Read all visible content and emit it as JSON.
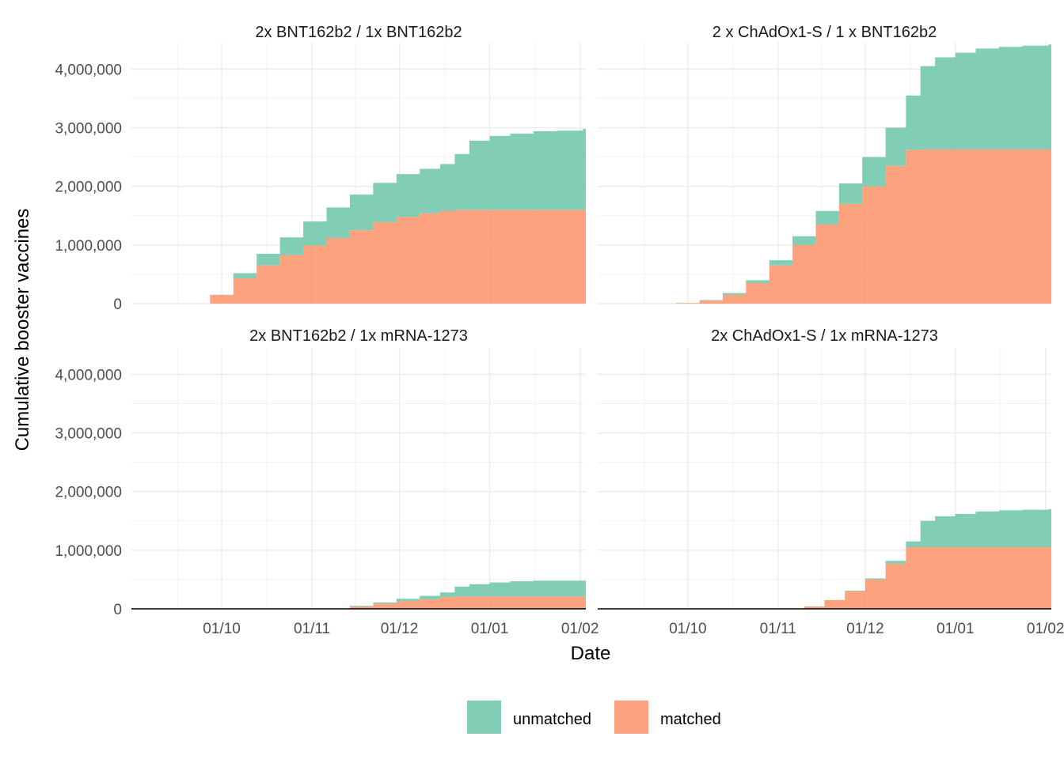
{
  "chart_data": {
    "type": "area",
    "stacked": true,
    "step": true,
    "xlabel": "Date",
    "ylabel": "Cumulative booster vaccines",
    "ylim": [
      0,
      4450000
    ],
    "y_ticks": [
      0,
      1000000,
      2000000,
      3000000,
      4000000
    ],
    "y_tick_labels": [
      "0",
      "1,000,000",
      "2,000,000",
      "3,000,000",
      "4,000,000"
    ],
    "x_range": [
      "2021-08-31",
      "2022-02-03"
    ],
    "x_ticks": [
      "2021-10-01",
      "2021-11-01",
      "2021-12-01",
      "2022-01-01",
      "2022-02-01"
    ],
    "x_tick_labels": [
      "01/10",
      "01/11",
      "01/12",
      "01/01",
      "01/02"
    ],
    "grid": true,
    "legend_position": "bottom",
    "legend": [
      {
        "key": "unmatched",
        "label": "unmatched",
        "color": "#66C2A5"
      },
      {
        "key": "matched",
        "label": "matched",
        "color": "#FC8D62"
      }
    ],
    "panels": [
      {
        "title": "2x BNT162b2  / 1x BNT162b2",
        "dates": [
          "2021-09-19",
          "2021-09-27",
          "2021-10-05",
          "2021-10-13",
          "2021-10-21",
          "2021-10-29",
          "2021-11-06",
          "2021-11-14",
          "2021-11-22",
          "2021-11-30",
          "2021-12-08",
          "2021-12-15",
          "2021-12-20",
          "2021-12-25",
          "2022-01-01",
          "2022-01-08",
          "2022-01-16",
          "2022-01-24",
          "2022-02-02"
        ],
        "matched": [
          0,
          150000,
          430000,
          650000,
          830000,
          990000,
          1120000,
          1250000,
          1390000,
          1480000,
          1540000,
          1580000,
          1600000,
          1600000,
          1600000,
          1600000,
          1600000,
          1600000,
          1600000
        ],
        "total": [
          0,
          150000,
          520000,
          850000,
          1130000,
          1400000,
          1640000,
          1860000,
          2060000,
          2210000,
          2300000,
          2380000,
          2550000,
          2780000,
          2860000,
          2900000,
          2940000,
          2950000,
          2980000
        ]
      },
      {
        "title": "2 x ChAdOx1-S / 1 x BNT162b2",
        "dates": [
          "2021-09-19",
          "2021-09-27",
          "2021-10-05",
          "2021-10-13",
          "2021-10-21",
          "2021-10-29",
          "2021-11-06",
          "2021-11-14",
          "2021-11-22",
          "2021-11-30",
          "2021-12-08",
          "2021-12-15",
          "2021-12-20",
          "2021-12-25",
          "2022-01-01",
          "2022-01-08",
          "2022-01-16",
          "2022-01-24",
          "2022-02-02"
        ],
        "matched": [
          0,
          10000,
          50000,
          150000,
          350000,
          650000,
          1000000,
          1350000,
          1700000,
          2000000,
          2350000,
          2620000,
          2630000,
          2630000,
          2630000,
          2630000,
          2630000,
          2630000,
          2630000
        ],
        "total": [
          0,
          10000,
          60000,
          180000,
          400000,
          740000,
          1150000,
          1580000,
          2050000,
          2500000,
          3000000,
          3550000,
          4050000,
          4200000,
          4280000,
          4350000,
          4380000,
          4400000,
          4420000
        ]
      },
      {
        "title": "2x BNT162b2 / 1x mRNA-1273",
        "dates": [
          "2021-11-05",
          "2021-11-14",
          "2021-11-22",
          "2021-11-30",
          "2021-12-08",
          "2021-12-15",
          "2021-12-20",
          "2021-12-25",
          "2022-01-01",
          "2022-01-08",
          "2022-01-16",
          "2022-01-24",
          "2022-02-02"
        ],
        "matched": [
          0,
          40000,
          90000,
          130000,
          160000,
          200000,
          210000,
          210000,
          210000,
          210000,
          210000,
          210000,
          210000
        ],
        "total": [
          0,
          50000,
          110000,
          170000,
          220000,
          280000,
          380000,
          420000,
          450000,
          470000,
          480000,
          480000,
          480000
        ]
      },
      {
        "title": "2x ChAdOx1-S / 1x mRNA-1273",
        "dates": [
          "2021-11-01",
          "2021-11-10",
          "2021-11-17",
          "2021-11-24",
          "2021-12-01",
          "2021-12-08",
          "2021-12-15",
          "2021-12-20",
          "2021-12-25",
          "2022-01-01",
          "2022-01-08",
          "2022-01-16",
          "2022-01-24",
          "2022-02-02"
        ],
        "matched": [
          0,
          40000,
          150000,
          300000,
          500000,
          770000,
          1050000,
          1050000,
          1050000,
          1050000,
          1050000,
          1050000,
          1050000,
          1050000
        ],
        "total": [
          0,
          40000,
          150000,
          310000,
          520000,
          820000,
          1150000,
          1500000,
          1580000,
          1620000,
          1660000,
          1680000,
          1690000,
          1700000
        ]
      }
    ]
  }
}
